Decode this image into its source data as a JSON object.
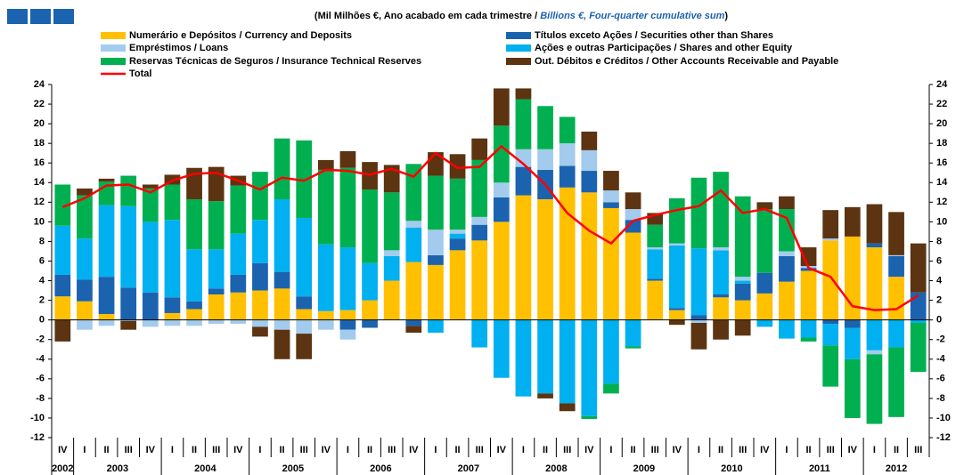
{
  "chart_data": {
    "type": "bar",
    "title_pt": "(Mil Milhões €, Ano acabado em cada trimestre /",
    "title_en": "Billions  €, Four-quarter cumulative sum",
    "title_close": ")",
    "categories": [
      "IV",
      "I",
      "II",
      "III",
      "IV",
      "I",
      "II",
      "III",
      "IV",
      "I",
      "II",
      "III",
      "IV",
      "I",
      "II",
      "III",
      "IV",
      "I",
      "II",
      "III",
      "IV",
      "I",
      "II",
      "III",
      "IV",
      "I",
      "II",
      "III",
      "IV",
      "I",
      "II",
      "III",
      "IV",
      "I",
      "II",
      "III",
      "IV",
      "I",
      "II",
      "III"
    ],
    "years": [
      "2002",
      "2003",
      "2004",
      "2005",
      "2006",
      "2007",
      "2008",
      "2009",
      "2010",
      "2011",
      "2012"
    ],
    "ylim": [
      -12,
      24
    ],
    "yticks": [
      -12,
      -10,
      -8,
      -6,
      -4,
      -2,
      0,
      2,
      4,
      6,
      8,
      10,
      12,
      14,
      16,
      18,
      20,
      22,
      24
    ],
    "series": [
      {
        "name": "Numerário e Depósitos / Currency and Deposits",
        "color": "#FFC000",
        "values": [
          2.4,
          1.9,
          0.6,
          0,
          0,
          0.7,
          1.1,
          2.6,
          2.8,
          3.0,
          3.2,
          1.1,
          0.9,
          1.0,
          2.0,
          4.0,
          5.9,
          5.6,
          7.1,
          8.1,
          10.0,
          12.7,
          12.3,
          13.5,
          13.0,
          11.4,
          8.9,
          4.0,
          1.0,
          0,
          2.3,
          2.0,
          2.7,
          3.9,
          5.0,
          8.1,
          8.5,
          7.4,
          4.4,
          0
        ]
      },
      {
        "name": "Títulos exceto Ações / Securities other than Shares",
        "color": "#1B63AF",
        "values": [
          2.2,
          2.2,
          3.8,
          3.3,
          2.8,
          1.6,
          0.8,
          0.6,
          1.8,
          2.8,
          1.7,
          1.3,
          0,
          -1.0,
          -0.8,
          0,
          -0.6,
          1.0,
          1.2,
          1.6,
          2.5,
          2.9,
          3.0,
          2.2,
          2.2,
          0.6,
          1.3,
          0.2,
          0.2,
          0.5,
          0.3,
          1.7,
          2.1,
          2.6,
          0.3,
          -0.4,
          -0.8,
          0.4,
          2.1,
          2.8
        ]
      },
      {
        "name": "Ações e outras Participações / Shares and other Equity",
        "color": "#00B0F0",
        "values": [
          5.0,
          4.2,
          7.3,
          8.3,
          7.2,
          7.9,
          5.3,
          4.0,
          4.2,
          4.4,
          7.4,
          8.0,
          6.8,
          6.4,
          3.8,
          2.5,
          3.5,
          -1.3,
          0.5,
          -2.8,
          -5.9,
          -7.8,
          -7.5,
          -8.5,
          -9.8,
          -6.5,
          -2.7,
          3.0,
          6.4,
          6.8,
          4.5,
          0.3,
          -0.7,
          -1.9,
          -1.8,
          -2.2,
          -3.2,
          -3.1,
          -2.8,
          -0.3
        ]
      },
      {
        "name": "Empréstimos / Loans",
        "color": "#A3CBEE",
        "values": [
          0,
          -1.0,
          -0.6,
          -0.1,
          -0.7,
          -0.6,
          -0.6,
          -0.4,
          -0.4,
          -0.7,
          -1.0,
          -1.4,
          -1.0,
          -1.0,
          0,
          0.6,
          0.7,
          2.6,
          0.4,
          0.8,
          1.5,
          1.8,
          2.1,
          2.3,
          2.1,
          1.2,
          1.1,
          0.2,
          0.2,
          -0.3,
          0.3,
          0.4,
          0,
          0.5,
          0.2,
          0.2,
          0,
          -0.4,
          0.1,
          0
        ]
      },
      {
        "name": "Reservas Técnicas de Seguros / Insurance Technical Reserves",
        "color": "#00B050",
        "values": [
          4.2,
          4.4,
          2.4,
          3.1,
          3.4,
          3.6,
          5.1,
          4.9,
          4.9,
          4.9,
          6.2,
          7.9,
          7.6,
          8.1,
          7.5,
          5.9,
          5.8,
          5.5,
          5.2,
          5.8,
          5.8,
          5.1,
          4.4,
          2.7,
          -0.3,
          -1.0,
          -0.2,
          2.3,
          4.6,
          7.2,
          7.7,
          8.2,
          6.5,
          4.3,
          -0.4,
          -4.2,
          -6.0,
          -7.1,
          -7.1,
          -5.0
        ]
      },
      {
        "name": "Out. Débitos e Créditos / Other Accounts Receivable and Payable",
        "color": "#5C3411",
        "values": [
          -2.2,
          0.7,
          0.3,
          -0.9,
          0.4,
          1.0,
          3.2,
          3.5,
          1.0,
          -1.0,
          -3.0,
          -2.6,
          1.0,
          1.7,
          2.8,
          2.8,
          -0.7,
          2.4,
          2.5,
          2.2,
          3.8,
          1.1,
          -0.5,
          -0.8,
          1.9,
          2.0,
          1.7,
          1.2,
          -0.5,
          -2.7,
          -2.0,
          -1.6,
          0.7,
          1.3,
          1.9,
          2.9,
          3.0,
          4.0,
          4.4,
          5.0
        ]
      },
      {
        "name": "Total",
        "type": "line",
        "color": "#FF0000",
        "values": [
          11.5,
          12.4,
          13.7,
          13.8,
          13.0,
          14.2,
          14.9,
          15.0,
          14.2,
          13.3,
          14.5,
          14.2,
          15.3,
          15.2,
          14.8,
          15.4,
          14.6,
          17.0,
          15.5,
          15.6,
          17.7,
          15.9,
          13.8,
          10.9,
          9.1,
          7.8,
          10.1,
          10.7,
          11.2,
          11.6,
          13.2,
          10.9,
          11.3,
          10.4,
          5.3,
          4.4,
          1.4,
          1.0,
          1.1,
          2.5
        ]
      }
    ]
  }
}
